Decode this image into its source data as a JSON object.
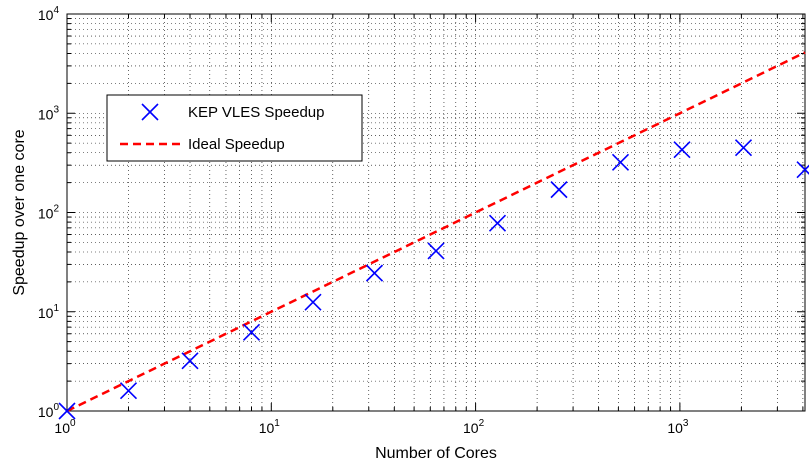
{
  "chart_data": {
    "type": "scatter",
    "xscale": "log",
    "yscale": "log",
    "xlabel": "Number of Cores",
    "ylabel": "Speedup over one core",
    "xlim": [
      1,
      4096
    ],
    "ylim": [
      1,
      10000
    ],
    "grid": true,
    "legend_position": "top-left",
    "x_ticks": [
      {
        "value": 1,
        "base": "10",
        "exp": "0"
      },
      {
        "value": 10,
        "base": "10",
        "exp": "1"
      },
      {
        "value": 100,
        "base": "10",
        "exp": "2"
      },
      {
        "value": 1000,
        "base": "10",
        "exp": "3"
      }
    ],
    "y_ticks": [
      {
        "value": 1,
        "base": "10",
        "exp": "0"
      },
      {
        "value": 10,
        "base": "10",
        "exp": "1"
      },
      {
        "value": 100,
        "base": "10",
        "exp": "2"
      },
      {
        "value": 1000,
        "base": "10",
        "exp": "3"
      },
      {
        "value": 10000,
        "base": "10",
        "exp": "4"
      }
    ],
    "series": [
      {
        "name": "KEP VLES Speedup",
        "marker": "x",
        "color": "#0000ff",
        "x": [
          1,
          2,
          4,
          8,
          16,
          32,
          64,
          128,
          256,
          512,
          1024,
          2048,
          4096
        ],
        "y": [
          1,
          1.6,
          3.2,
          6.2,
          12.5,
          24.5,
          41,
          78,
          170,
          320,
          430,
          450,
          270
        ]
      },
      {
        "name": "Ideal Speedup",
        "style": "dashed-line",
        "color": "#ff0000",
        "x": [
          1,
          4096
        ],
        "y": [
          1,
          4096
        ]
      }
    ]
  }
}
